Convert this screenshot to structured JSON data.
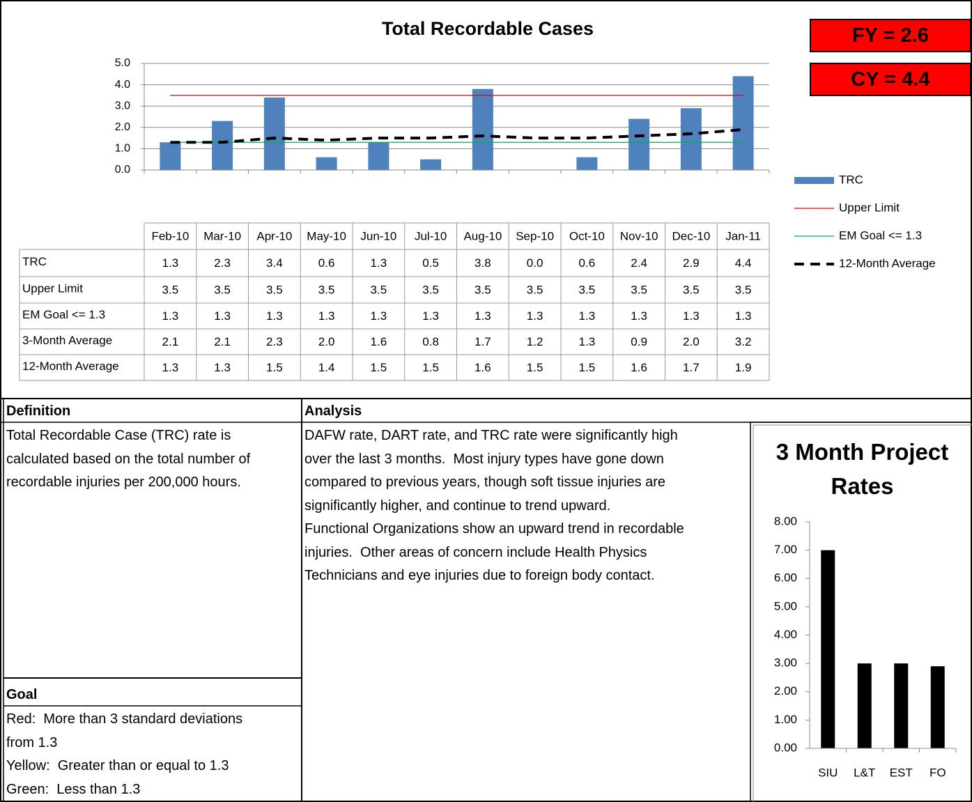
{
  "chart_data": [
    {
      "type": "bar",
      "title": "Total Recordable Cases",
      "categories": [
        "Feb-10",
        "Mar-10",
        "Apr-10",
        "May-10",
        "Jun-10",
        "Jul-10",
        "Aug-10",
        "Sep-10",
        "Oct-10",
        "Nov-10",
        "Dec-10",
        "Jan-11"
      ],
      "series": [
        {
          "name": "TRC",
          "type": "bar",
          "color": "#4f81bd",
          "values": [
            1.3,
            2.3,
            3.4,
            0.6,
            1.3,
            0.5,
            3.8,
            0.0,
            0.6,
            2.4,
            2.9,
            4.4
          ],
          "value_labels": [
            "1.3",
            "2.3",
            "3.4",
            "0.6",
            "1.3",
            "0.5",
            "3.8",
            "0.0",
            "0.6",
            "2.4",
            "2.9",
            "4.4"
          ]
        },
        {
          "name": "Upper Limit",
          "type": "line",
          "color": "#e00000",
          "values": [
            3.5,
            3.5,
            3.5,
            3.5,
            3.5,
            3.5,
            3.5,
            3.5,
            3.5,
            3.5,
            3.5,
            3.5
          ]
        },
        {
          "name": "EM Goal <= 1.3",
          "type": "line",
          "color": "#00b050",
          "values": [
            1.3,
            1.3,
            1.3,
            1.3,
            1.3,
            1.3,
            1.3,
            1.3,
            1.3,
            1.3,
            1.3,
            1.3
          ]
        },
        {
          "name": "3-Month Average",
          "values": [
            2.1,
            2.1,
            2.3,
            2.0,
            1.6,
            0.8,
            1.7,
            1.2,
            1.3,
            0.9,
            2.0,
            3.2
          ],
          "value_labels": [
            "2.1",
            "2.1",
            "2.3",
            "2.0",
            "1.6",
            "0.8",
            "1.7",
            "1.2",
            "1.3",
            "0.9",
            "2.0",
            "3.2"
          ]
        },
        {
          "name": "12-Month Average",
          "type": "dashed",
          "color": "#000000",
          "values": [
            1.3,
            1.3,
            1.5,
            1.4,
            1.5,
            1.5,
            1.6,
            1.5,
            1.5,
            1.6,
            1.7,
            1.9
          ]
        }
      ],
      "ylim": [
        0,
        5
      ],
      "yticks": [
        {
          "value": 0,
          "label": "0.0"
        },
        {
          "value": 1,
          "label": "1.0"
        },
        {
          "value": 2,
          "label": "2.0"
        },
        {
          "value": 3,
          "label": "3.0"
        },
        {
          "value": 4,
          "label": "4.0"
        },
        {
          "value": 5,
          "label": "5.0"
        }
      ],
      "grid": true
    },
    {
      "type": "bar",
      "title": "3 Month Project Rates",
      "categories": [
        "SIU",
        "L&T",
        "EST",
        "FO"
      ],
      "values": [
        7.0,
        3.0,
        3.0,
        2.9
      ],
      "color": "#000000",
      "ylim": [
        0,
        8
      ],
      "yticks": [
        {
          "value": 0,
          "label": "0.00"
        },
        {
          "value": 1,
          "label": "1.00"
        },
        {
          "value": 2,
          "label": "2.00"
        },
        {
          "value": 3,
          "label": "3.00"
        },
        {
          "value": 4,
          "label": "4.00"
        },
        {
          "value": 5,
          "label": "5.00"
        },
        {
          "value": 6,
          "label": "6.00"
        },
        {
          "value": 7,
          "label": "7.00"
        },
        {
          "value": 8,
          "label": "8.00"
        }
      ],
      "grid": false
    }
  ],
  "badges": [
    "FY = 2.6",
    "CY = 4.4"
  ],
  "definition": {
    "heading": "Definition",
    "lines": [
      "Total Recordable Case (TRC) rate is",
      "calculated based on the total number of",
      "recordable injuries per 200,000 hours."
    ]
  },
  "analysis": {
    "heading": "Analysis",
    "lines": [
      "DAFW rate, DART rate, and TRC rate were significantly high",
      "over the last 3 months.  Most injury types have gone down",
      "compared to previous years, though soft tissue injuries are",
      "significantly higher, and continue to trend upward.",
      "Functional Organizations show an upward trend in recordable",
      "injuries.  Other areas of concern include Health Physics",
      "Technicians and eye injuries due to foreign body contact."
    ]
  },
  "goal": {
    "heading": "Goal",
    "lines": [
      "Red:  More than 3 standard deviations",
      "from 1.3",
      "Yellow:  Greater than or equal to 1.3",
      "Green:  Less than 1.3"
    ]
  }
}
